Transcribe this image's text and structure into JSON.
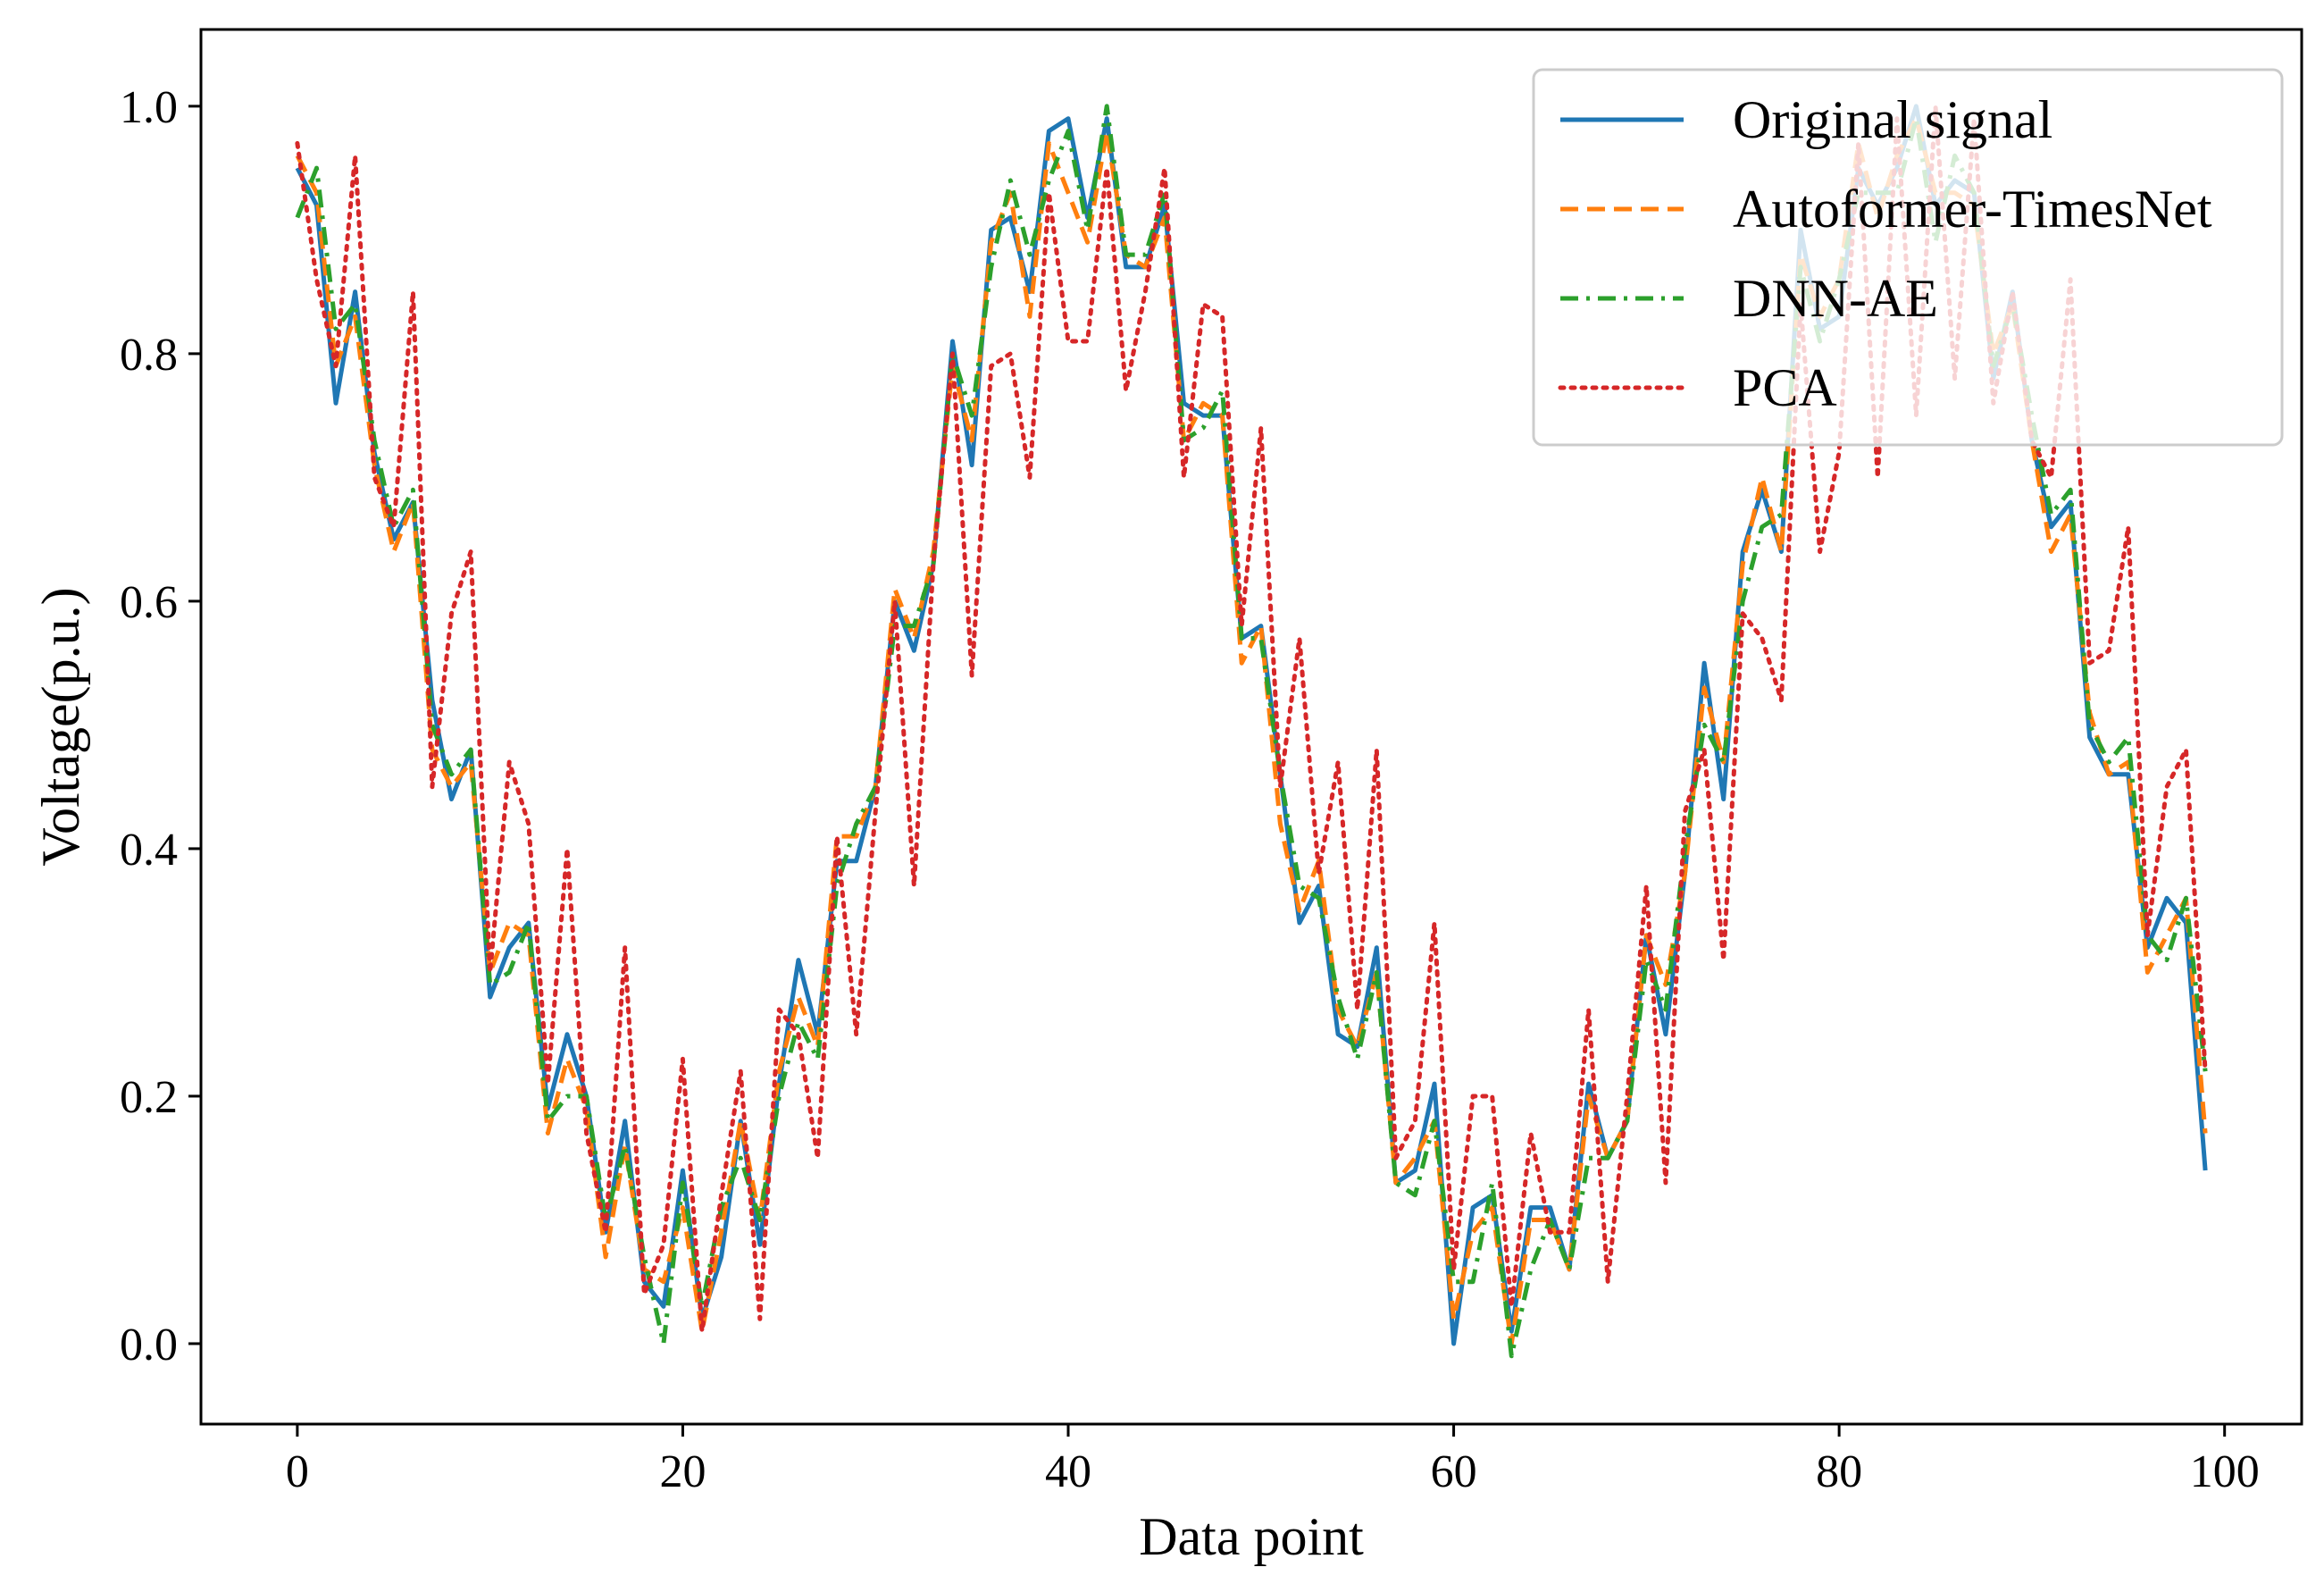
{
  "chart_data": {
    "type": "line",
    "xlabel": "Data point",
    "ylabel": "Voltage(p.u.)",
    "xlim": [
      -5,
      104
    ],
    "ylim": [
      -0.065,
      1.062
    ],
    "xticks": [
      0,
      20,
      40,
      60,
      80,
      100
    ],
    "yticks": [
      0.0,
      0.2,
      0.4,
      0.6,
      0.8,
      1.0
    ],
    "xtick_labels": [
      "0",
      "20",
      "40",
      "60",
      "80",
      "100"
    ],
    "ytick_labels": [
      "0.0",
      "0.2",
      "0.4",
      "0.6",
      "0.8",
      "1.0"
    ],
    "grid": false,
    "legend_position": "top-right",
    "x": [
      0,
      1,
      2,
      3,
      4,
      5,
      6,
      7,
      8,
      9,
      10,
      11,
      12,
      13,
      14,
      15,
      16,
      17,
      18,
      19,
      20,
      21,
      22,
      23,
      24,
      25,
      26,
      27,
      28,
      29,
      30,
      31,
      32,
      33,
      34,
      35,
      36,
      37,
      38,
      39,
      40,
      41,
      42,
      43,
      44,
      45,
      46,
      47,
      48,
      49,
      50,
      51,
      52,
      53,
      54,
      55,
      56,
      57,
      58,
      59,
      60,
      61,
      62,
      63,
      64,
      65,
      66,
      67,
      68,
      69,
      70,
      71,
      72,
      73,
      74,
      75,
      76,
      77,
      78,
      79,
      80,
      81,
      82,
      83,
      84,
      85,
      86,
      87,
      88,
      89,
      90,
      91,
      92,
      93,
      94,
      95,
      96,
      97,
      98,
      99
    ],
    "series": [
      {
        "name": "Original signal",
        "color": "#1f77b4",
        "dash": "solid",
        "values": [
          0.95,
          0.92,
          0.76,
          0.85,
          0.72,
          0.65,
          0.68,
          0.52,
          0.44,
          0.48,
          0.28,
          0.32,
          0.34,
          0.19,
          0.25,
          0.2,
          0.09,
          0.18,
          0.05,
          0.03,
          0.14,
          0.02,
          0.07,
          0.18,
          0.08,
          0.21,
          0.31,
          0.25,
          0.39,
          0.39,
          0.45,
          0.6,
          0.56,
          0.63,
          0.81,
          0.71,
          0.9,
          0.91,
          0.85,
          0.98,
          0.99,
          0.91,
          0.99,
          0.87,
          0.87,
          0.92,
          0.76,
          0.75,
          0.75,
          0.57,
          0.58,
          0.46,
          0.34,
          0.37,
          0.25,
          0.24,
          0.32,
          0.13,
          0.14,
          0.21,
          0.0,
          0.11,
          0.12,
          0.01,
          0.11,
          0.11,
          0.06,
          0.21,
          0.15,
          0.18,
          0.33,
          0.25,
          0.38,
          0.55,
          0.44,
          0.64,
          0.69,
          0.64,
          0.9,
          0.82,
          0.83,
          0.95,
          0.92,
          0.95,
          1.0,
          0.92,
          0.94,
          0.93,
          0.78,
          0.85,
          0.73,
          0.66,
          0.68,
          0.49,
          0.46,
          0.46,
          0.32,
          0.36,
          0.34,
          0.14
        ]
      },
      {
        "name": "Autoformer-TimesNet",
        "color": "#ff7f0e",
        "dash": "dashed",
        "values": [
          0.96,
          0.93,
          0.79,
          0.83,
          0.71,
          0.64,
          0.68,
          0.48,
          0.45,
          0.47,
          0.3,
          0.34,
          0.33,
          0.17,
          0.23,
          0.19,
          0.07,
          0.16,
          0.06,
          0.05,
          0.11,
          0.01,
          0.09,
          0.18,
          0.1,
          0.22,
          0.28,
          0.24,
          0.41,
          0.41,
          0.45,
          0.61,
          0.57,
          0.64,
          0.79,
          0.73,
          0.89,
          0.93,
          0.83,
          0.97,
          0.93,
          0.89,
          0.98,
          0.88,
          0.87,
          0.91,
          0.73,
          0.76,
          0.75,
          0.55,
          0.58,
          0.42,
          0.35,
          0.39,
          0.27,
          0.24,
          0.3,
          0.13,
          0.15,
          0.18,
          0.02,
          0.09,
          0.11,
          0.0,
          0.1,
          0.1,
          0.06,
          0.2,
          0.15,
          0.18,
          0.33,
          0.29,
          0.38,
          0.53,
          0.47,
          0.63,
          0.7,
          0.64,
          0.88,
          0.83,
          0.86,
          0.97,
          0.91,
          0.96,
          0.99,
          0.93,
          0.93,
          0.92,
          0.8,
          0.84,
          0.73,
          0.64,
          0.67,
          0.51,
          0.46,
          0.47,
          0.3,
          0.33,
          0.36,
          0.17
        ]
      },
      {
        "name": "DNN-AE",
        "color": "#2ca02c",
        "dash": "dashdot",
        "values": [
          0.91,
          0.95,
          0.82,
          0.84,
          0.73,
          0.66,
          0.69,
          0.5,
          0.46,
          0.48,
          0.29,
          0.3,
          0.34,
          0.18,
          0.2,
          0.2,
          0.1,
          0.16,
          0.07,
          0.0,
          0.13,
          0.03,
          0.11,
          0.15,
          0.1,
          0.2,
          0.26,
          0.23,
          0.37,
          0.42,
          0.45,
          0.58,
          0.58,
          0.63,
          0.8,
          0.75,
          0.87,
          0.94,
          0.88,
          0.94,
          0.98,
          0.9,
          1.0,
          0.88,
          0.88,
          0.93,
          0.73,
          0.74,
          0.77,
          0.57,
          0.57,
          0.46,
          0.37,
          0.36,
          0.28,
          0.23,
          0.3,
          0.13,
          0.12,
          0.18,
          0.05,
          0.05,
          0.13,
          -0.01,
          0.06,
          0.1,
          0.06,
          0.15,
          0.15,
          0.18,
          0.31,
          0.27,
          0.4,
          0.5,
          0.47,
          0.6,
          0.66,
          0.67,
          0.87,
          0.81,
          0.86,
          0.93,
          0.93,
          0.93,
          0.99,
          0.89,
          0.96,
          0.93,
          0.79,
          0.84,
          0.75,
          0.67,
          0.69,
          0.5,
          0.47,
          0.49,
          0.33,
          0.31,
          0.36,
          0.22
        ]
      },
      {
        "name": "PCA",
        "color": "#d62728",
        "dash": "dotted",
        "values": [
          0.97,
          0.86,
          0.79,
          0.96,
          0.7,
          0.66,
          0.85,
          0.45,
          0.59,
          0.64,
          0.3,
          0.47,
          0.42,
          0.21,
          0.4,
          0.17,
          0.09,
          0.32,
          0.04,
          0.08,
          0.23,
          0.01,
          0.12,
          0.22,
          0.02,
          0.27,
          0.25,
          0.15,
          0.41,
          0.25,
          0.43,
          0.6,
          0.37,
          0.63,
          0.8,
          0.54,
          0.79,
          0.8,
          0.7,
          0.93,
          0.81,
          0.81,
          0.95,
          0.77,
          0.85,
          0.95,
          0.7,
          0.84,
          0.83,
          0.58,
          0.74,
          0.45,
          0.57,
          0.38,
          0.47,
          0.27,
          0.48,
          0.15,
          0.18,
          0.34,
          0.06,
          0.2,
          0.2,
          0.03,
          0.17,
          0.09,
          0.09,
          0.27,
          0.05,
          0.2,
          0.37,
          0.13,
          0.43,
          0.48,
          0.31,
          0.59,
          0.57,
          0.52,
          0.84,
          0.64,
          0.72,
          0.97,
          0.7,
          0.99,
          0.75,
          1.0,
          0.78,
          0.99,
          0.76,
          0.85,
          0.73,
          0.7,
          0.86,
          0.55,
          0.56,
          0.66,
          0.33,
          0.45,
          0.48,
          0.22
        ]
      }
    ]
  }
}
